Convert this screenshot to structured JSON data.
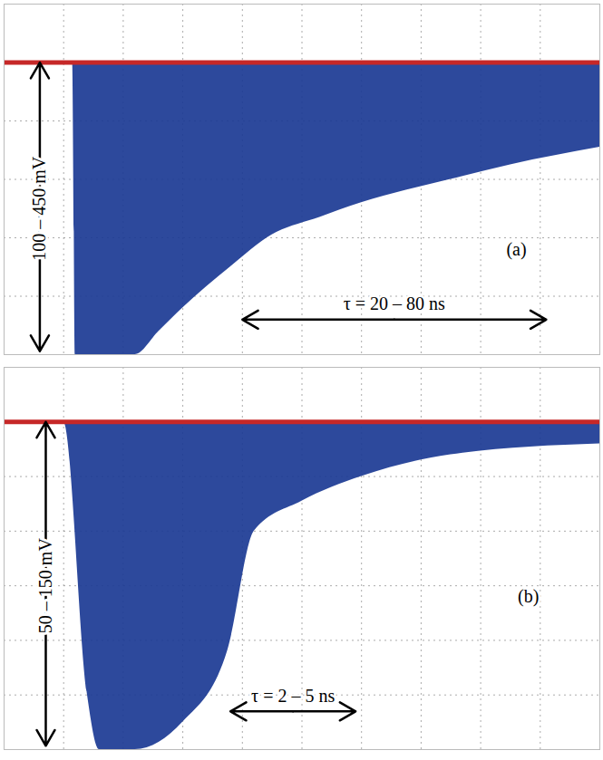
{
  "chart_data": [
    {
      "type": "area",
      "panel_label": "(a)",
      "amplitude_label": "100 – 450 mV",
      "tau_label": "τ = 20 – 80 ns",
      "x": [
        0,
        1.15,
        1.2,
        1.3,
        2.2,
        2.6,
        3.0,
        3.8,
        4.5,
        5.3,
        6.0,
        7.5,
        8.5,
        10
      ],
      "series": [
        {
          "color": "#1b3a94",
          "values": [
            0,
            0,
            -5,
            -5,
            -5,
            -4.6,
            -4.2,
            -3.5,
            -2.95,
            -2.65,
            -2.4,
            -2.0,
            -1.75,
            -1.45
          ]
        },
        {
          "color": "#c62828",
          "values": [
            0,
            0,
            0,
            0,
            0,
            0,
            0,
            0,
            0,
            0,
            0,
            0,
            0,
            0
          ]
        }
      ],
      "xlim": [
        0,
        10
      ],
      "ylim": [
        -5,
        1
      ],
      "xticks": [
        0,
        1,
        2,
        3,
        4,
        5,
        6,
        7,
        8,
        9,
        10
      ],
      "yticks": [
        -5,
        -4,
        -3,
        -2,
        -1,
        0,
        1
      ],
      "grid": true,
      "tick_labels": false
    },
    {
      "type": "area",
      "panel_label": "(b)",
      "amplitude_label": "50 – 150 mV",
      "tau_label": "τ = 2 – 5 ns",
      "x": [
        0,
        1.0,
        1.4,
        1.6,
        2.2,
        3.0,
        3.75,
        4.2,
        5.0,
        6.0,
        7.5,
        10
      ],
      "series": [
        {
          "color": "#1b3a94",
          "values": [
            0,
            0,
            -5,
            -6,
            -6,
            -5.5,
            -4.2,
            -2.0,
            -1.45,
            -1.0,
            -0.6,
            -0.4
          ]
        },
        {
          "color": "#c62828",
          "values": [
            0,
            0,
            0,
            0,
            0,
            0,
            0,
            0,
            0,
            0,
            0,
            0
          ]
        }
      ],
      "xlim": [
        0,
        10
      ],
      "ylim": [
        -6,
        1
      ],
      "xticks": [
        0,
        1,
        2,
        3,
        4,
        5,
        6,
        7,
        8,
        9,
        10
      ],
      "yticks": [
        -6,
        -5,
        -4,
        -3,
        -2,
        -1,
        0,
        1
      ],
      "grid": true,
      "tick_labels": false
    }
  ]
}
